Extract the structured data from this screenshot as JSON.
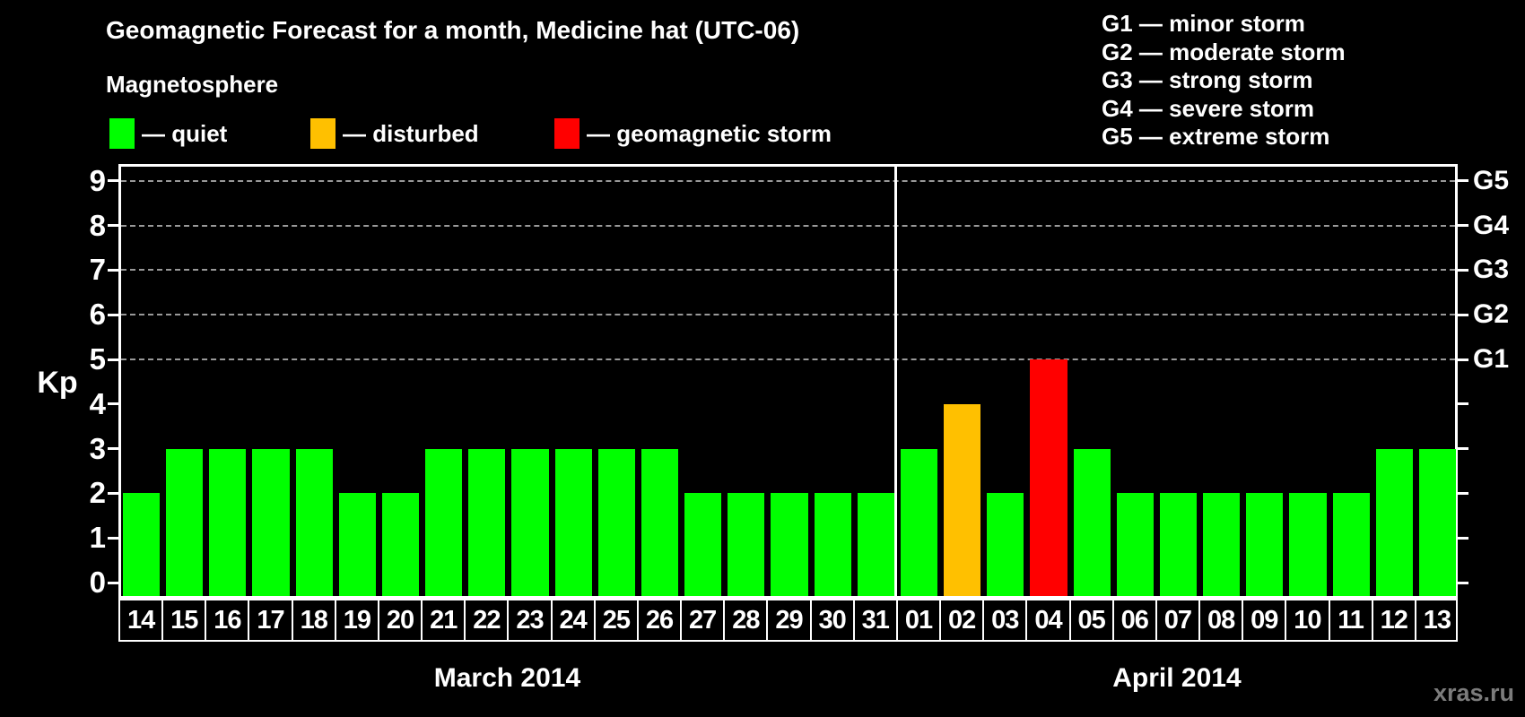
{
  "title": "Geomagnetic Forecast for a month, Medicine hat (UTC-06)",
  "legend": {
    "heading": "Magnetosphere",
    "items": [
      {
        "status": "quiet",
        "label": "— quiet",
        "color": "#00ff00"
      },
      {
        "status": "disturbed",
        "label": "— disturbed",
        "color": "#ffc000"
      },
      {
        "status": "storm",
        "label": "— geomagnetic storm",
        "color": "#ff0000"
      }
    ]
  },
  "storm_scale_legend": [
    "G1 — minor storm",
    "G2 — moderate storm",
    "G3 — strong storm",
    "G4 — severe storm",
    "G5 — extreme storm"
  ],
  "watermark": "xras.ru",
  "chart_data": {
    "type": "bar",
    "title": "Geomagnetic Forecast for a month, Medicine hat (UTC-06)",
    "ylabel": "Kp",
    "ylim": [
      0,
      9
    ],
    "yticks": [
      0,
      1,
      2,
      3,
      4,
      5,
      6,
      7,
      8,
      9
    ],
    "gridlines_at_kp": [
      5,
      6,
      7,
      8,
      9
    ],
    "grid_style": "dashed",
    "legend_position": "top-left",
    "right_axis_labels": [
      {
        "kp": 5,
        "label": "G1"
      },
      {
        "kp": 6,
        "label": "G2"
      },
      {
        "kp": 7,
        "label": "G3"
      },
      {
        "kp": 8,
        "label": "G4"
      },
      {
        "kp": 9,
        "label": "G5"
      }
    ],
    "status_colors": {
      "quiet": "#00ff00",
      "disturbed": "#ffc000",
      "storm": "#ff0000"
    },
    "groups": [
      {
        "month_label": "March 2014",
        "days": [
          "14",
          "15",
          "16",
          "17",
          "18",
          "19",
          "20",
          "21",
          "22",
          "23",
          "24",
          "25",
          "26",
          "27",
          "28",
          "29",
          "30",
          "31"
        ],
        "values": [
          2,
          3,
          3,
          3,
          3,
          2,
          2,
          3,
          3,
          3,
          3,
          3,
          3,
          2,
          2,
          2,
          2,
          2
        ],
        "status": [
          "quiet",
          "quiet",
          "quiet",
          "quiet",
          "quiet",
          "quiet",
          "quiet",
          "quiet",
          "quiet",
          "quiet",
          "quiet",
          "quiet",
          "quiet",
          "quiet",
          "quiet",
          "quiet",
          "quiet",
          "quiet"
        ]
      },
      {
        "month_label": "April 2014",
        "days": [
          "01",
          "02",
          "03",
          "04",
          "05",
          "06",
          "07",
          "08",
          "09",
          "10",
          "11",
          "12",
          "13"
        ],
        "values": [
          3,
          4,
          2,
          5,
          3,
          2,
          2,
          2,
          2,
          2,
          2,
          3,
          3
        ],
        "status": [
          "quiet",
          "disturbed",
          "quiet",
          "storm",
          "quiet",
          "quiet",
          "quiet",
          "quiet",
          "quiet",
          "quiet",
          "quiet",
          "quiet",
          "quiet"
        ]
      }
    ]
  }
}
